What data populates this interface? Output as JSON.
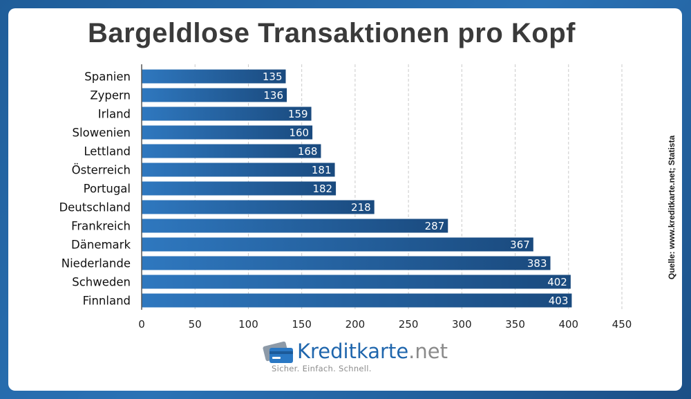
{
  "chart_data": {
    "type": "bar",
    "orientation": "horizontal",
    "title": "Bargeldlose Transaktionen pro Kopf",
    "categories": [
      "Spanien",
      "Zypern",
      "Irland",
      "Slowenien",
      "Lettland",
      "Österreich",
      "Portugal",
      "Deutschland",
      "Frankreich",
      "Dänemark",
      "Niederlande",
      "Schweden",
      "Finnland"
    ],
    "values": [
      135,
      136,
      159,
      160,
      168,
      181,
      182,
      218,
      287,
      367,
      383,
      402,
      403
    ],
    "xlim": [
      0,
      450
    ],
    "xticks": [
      0,
      50,
      100,
      150,
      200,
      250,
      300,
      350,
      400,
      450
    ],
    "xlabel": "",
    "ylabel": "",
    "grid": "vertical dashed",
    "bar_color": "#2a6cb0",
    "data_labels": true
  },
  "source": "Quelle: www.kreditkarte.net; Statista",
  "logo": {
    "name": "Kreditkarte",
    "tld": ".net",
    "tagline": "Sicher. Einfach. Schnell.",
    "icon": "credit-card-icon",
    "color": "#1f66ad"
  },
  "colors": {
    "background": "#2a72b5",
    "card": "#ffffff",
    "title": "#3a3a3a"
  }
}
